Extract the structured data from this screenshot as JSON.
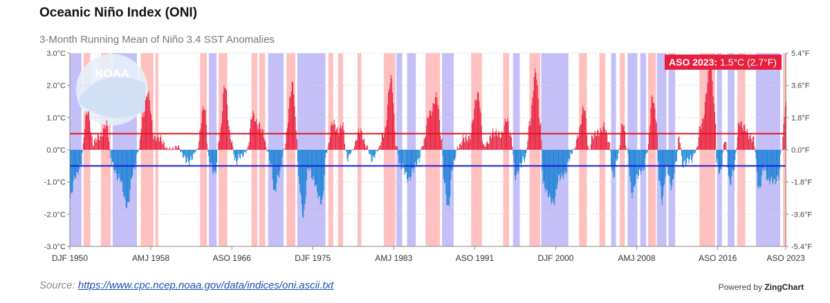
{
  "header": {
    "title": "Oceanic Niño Index (ONI)",
    "subtitle": "3-Month Running Mean of Niño 3.4 SST Anomalies"
  },
  "footer": {
    "source_label": "Source:",
    "source_link": "https://www.cpc.ncep.noaa.gov/data/indices/oni.ascii.txt",
    "powered_prefix": "Powered by",
    "powered_brand": "ZingChart"
  },
  "logo_text": "NOAA",
  "callout": {
    "label": "ASO 2023:",
    "value": "1.5°C (2.7°F)"
  },
  "chart_data": {
    "type": "bar",
    "x_start": "DJF 1950",
    "x_end": "ASO 2023",
    "x_ticks": [
      {
        "label": "DJF 1950",
        "year": 1950.0
      },
      {
        "label": "AMJ 1958",
        "year": 1958.33
      },
      {
        "label": "ASO 1966",
        "year": 1966.67
      },
      {
        "label": "DJF 1975",
        "year": 1975.0
      },
      {
        "label": "AMJ 1983",
        "year": 1983.33
      },
      {
        "label": "ASO 1991",
        "year": 1991.67
      },
      {
        "label": "DJF 2000",
        "year": 2000.0
      },
      {
        "label": "AMJ 2008",
        "year": 2008.33
      },
      {
        "label": "ASO 2016",
        "year": 2016.67
      },
      {
        "label": "ASO 2023",
        "year": 2023.67
      }
    ],
    "ylim": [
      -3,
      3
    ],
    "y_ticks_left": [
      "3.0°C",
      "2.0°C",
      "1.0°C",
      "0.0°C",
      "-1.0°C",
      "-2.0°C",
      "-3.0°C"
    ],
    "y_ticks_right": [
      "5.4°F",
      "3.6°F",
      "1.8°F",
      "0.0°F",
      "-1.8°F",
      "-3.6°F",
      "-5.4°F"
    ],
    "thresholds": [
      0.5,
      -0.5
    ],
    "colors": {
      "warm": "#e8203f",
      "cool": "#1a82d6",
      "warm_band": "#ffc0c0",
      "cool_band": "#c4c0f7",
      "warm_line": "#e01020",
      "cool_line": "#1a1ad6"
    },
    "peaks": [
      [
        1950.0,
        -1.5
      ],
      [
        1950.6,
        -0.8
      ],
      [
        1951.0,
        -0.5
      ],
      [
        1951.8,
        1.2
      ],
      [
        1952.4,
        0.2
      ],
      [
        1953.0,
        0.4
      ],
      [
        1953.7,
        0.8
      ],
      [
        1954.3,
        -0.4
      ],
      [
        1955.0,
        -0.9
      ],
      [
        1955.9,
        -1.7
      ],
      [
        1956.5,
        -0.7
      ],
      [
        1957.0,
        0.0
      ],
      [
        1957.5,
        1.0
      ],
      [
        1958.0,
        1.8
      ],
      [
        1958.7,
        0.3
      ],
      [
        1959.3,
        0.4
      ],
      [
        1960.0,
        0.0
      ],
      [
        1961.0,
        0.1
      ],
      [
        1961.7,
        -0.2
      ],
      [
        1962.3,
        -0.4
      ],
      [
        1963.0,
        0.0
      ],
      [
        1963.8,
        1.3
      ],
      [
        1964.3,
        -0.3
      ],
      [
        1964.9,
        -0.8
      ],
      [
        1965.4,
        0.5
      ],
      [
        1965.9,
        2.0
      ],
      [
        1966.5,
        0.4
      ],
      [
        1967.1,
        -0.4
      ],
      [
        1967.6,
        -0.2
      ],
      [
        1968.2,
        0.0
      ],
      [
        1968.8,
        1.1
      ],
      [
        1969.4,
        0.8
      ],
      [
        1969.8,
        0.5
      ],
      [
        1970.3,
        0.0
      ],
      [
        1970.7,
        -0.5
      ],
      [
        1971.0,
        -1.4
      ],
      [
        1971.5,
        -0.7
      ],
      [
        1972.0,
        0.0
      ],
      [
        1972.9,
        2.1
      ],
      [
        1973.3,
        0.5
      ],
      [
        1973.5,
        -1.0
      ],
      [
        1974.0,
        -2.0
      ],
      [
        1974.5,
        -0.6
      ],
      [
        1975.0,
        -0.9
      ],
      [
        1975.9,
        -1.7
      ],
      [
        1976.4,
        0.0
      ],
      [
        1977.0,
        0.8
      ],
      [
        1977.6,
        0.6
      ],
      [
        1978.0,
        0.8
      ],
      [
        1978.5,
        -0.3
      ],
      [
        1979.0,
        0.0
      ],
      [
        1979.9,
        0.6
      ],
      [
        1980.5,
        0.1
      ],
      [
        1981.0,
        -0.3
      ],
      [
        1981.7,
        0.0
      ],
      [
        1982.3,
        0.5
      ],
      [
        1983.0,
        2.2
      ],
      [
        1983.6,
        0.1
      ],
      [
        1984.0,
        -0.5
      ],
      [
        1984.8,
        -0.9
      ],
      [
        1985.3,
        -0.6
      ],
      [
        1985.8,
        -0.4
      ],
      [
        1986.3,
        0.2
      ],
      [
        1987.0,
        1.1
      ],
      [
        1987.7,
        1.7
      ],
      [
        1988.2,
        0.3
      ],
      [
        1988.5,
        -1.0
      ],
      [
        1988.9,
        -1.8
      ],
      [
        1989.4,
        -0.5
      ],
      [
        1989.9,
        0.1
      ],
      [
        1990.5,
        0.3
      ],
      [
        1991.0,
        0.4
      ],
      [
        1992.0,
        1.7
      ],
      [
        1992.6,
        0.1
      ],
      [
        1993.0,
        0.2
      ],
      [
        1993.5,
        0.6
      ],
      [
        1994.3,
        0.4
      ],
      [
        1994.9,
        1.0
      ],
      [
        1995.4,
        0.3
      ],
      [
        1995.8,
        -0.8
      ],
      [
        1996.3,
        -0.5
      ],
      [
        1996.8,
        -0.3
      ],
      [
        1997.3,
        0.9
      ],
      [
        1997.9,
        2.4
      ],
      [
        1998.4,
        0.8
      ],
      [
        1998.7,
        -1.1
      ],
      [
        1999.1,
        -1.4
      ],
      [
        1999.8,
        -1.6
      ],
      [
        2000.3,
        -0.9
      ],
      [
        2000.9,
        -0.7
      ],
      [
        2001.4,
        -0.3
      ],
      [
        2001.8,
        0.0
      ],
      [
        2002.3,
        0.5
      ],
      [
        2002.9,
        1.3
      ],
      [
        2003.4,
        0.0
      ],
      [
        2003.8,
        0.4
      ],
      [
        2004.5,
        0.6
      ],
      [
        2004.9,
        0.7
      ],
      [
        2005.4,
        0.3
      ],
      [
        2005.9,
        -0.8
      ],
      [
        2006.3,
        -0.3
      ],
      [
        2006.9,
        0.9
      ],
      [
        2007.3,
        0.0
      ],
      [
        2007.8,
        -1.4
      ],
      [
        2008.3,
        -0.8
      ],
      [
        2008.9,
        -0.7
      ],
      [
        2009.4,
        0.0
      ],
      [
        2009.9,
        1.6
      ],
      [
        2010.3,
        1.0
      ],
      [
        2010.6,
        -0.8
      ],
      [
        2010.9,
        -1.6
      ],
      [
        2011.4,
        -0.6
      ],
      [
        2011.9,
        -1.1
      ],
      [
        2012.3,
        -0.5
      ],
      [
        2012.7,
        0.4
      ],
      [
        2013.0,
        -0.4
      ],
      [
        2013.5,
        -0.4
      ],
      [
        2013.9,
        -0.3
      ],
      [
        2014.4,
        0.0
      ],
      [
        2014.9,
        0.7
      ],
      [
        2015.9,
        2.6
      ],
      [
        2016.4,
        1.0
      ],
      [
        2016.5,
        -0.3
      ],
      [
        2016.9,
        -0.7
      ],
      [
        2017.4,
        0.3
      ],
      [
        2017.9,
        -1.0
      ],
      [
        2018.3,
        -0.6
      ],
      [
        2018.9,
        0.9
      ],
      [
        2019.4,
        0.7
      ],
      [
        2019.8,
        0.4
      ],
      [
        2020.3,
        0.4
      ],
      [
        2020.9,
        -1.3
      ],
      [
        2021.4,
        -0.5
      ],
      [
        2021.9,
        -1.0
      ],
      [
        2022.4,
        -1.0
      ],
      [
        2022.9,
        -0.8
      ],
      [
        2023.2,
        0.0
      ],
      [
        2023.67,
        1.5
      ]
    ],
    "warm_bands": [
      [
        1951.4,
        1952.1
      ],
      [
        1953.2,
        1954.2
      ],
      [
        1957.3,
        1958.6
      ],
      [
        1958.8,
        1959.1
      ],
      [
        1963.4,
        1964.1
      ],
      [
        1965.3,
        1966.2
      ],
      [
        1968.7,
        1969.3
      ],
      [
        1969.5,
        1970.1
      ],
      [
        1972.3,
        1973.2
      ],
      [
        1976.6,
        1977.1
      ],
      [
        1977.6,
        1978.1
      ],
      [
        1979.6,
        1980.0
      ],
      [
        1982.3,
        1983.5
      ],
      [
        1986.6,
        1988.1
      ],
      [
        1991.3,
        1992.4
      ],
      [
        1994.6,
        1995.2
      ],
      [
        1997.3,
        1998.4
      ],
      [
        2002.4,
        2003.2
      ],
      [
        2004.5,
        2005.1
      ],
      [
        2006.6,
        2007.1
      ],
      [
        2009.5,
        2010.3
      ],
      [
        2014.8,
        2016.4
      ],
      [
        2018.7,
        2019.5
      ],
      [
        2023.4,
        2023.75
      ]
    ],
    "cool_bands": [
      [
        1950.0,
        1951.2
      ],
      [
        1954.4,
        1956.9
      ],
      [
        1964.3,
        1965.1
      ],
      [
        1970.4,
        1972.0
      ],
      [
        1973.4,
        1976.3
      ],
      [
        1983.6,
        1984.2
      ],
      [
        1984.7,
        1985.6
      ],
      [
        1988.3,
        1989.5
      ],
      [
        1995.6,
        1996.3
      ],
      [
        1998.5,
        2001.3
      ],
      [
        2005.7,
        2006.2
      ],
      [
        2007.4,
        2008.4
      ],
      [
        2008.7,
        2009.3
      ],
      [
        2010.4,
        2011.4
      ],
      [
        2011.6,
        2012.3
      ],
      [
        2016.6,
        2017.1
      ],
      [
        2017.7,
        2018.4
      ],
      [
        2020.6,
        2023.1
      ]
    ]
  }
}
